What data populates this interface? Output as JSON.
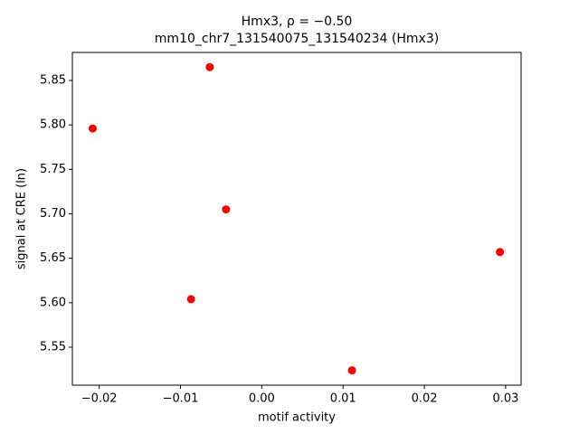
{
  "chart_data": {
    "type": "scatter",
    "title": "Hmx3, ρ = −0.50",
    "subtitle": "mm10_chr7_131540075_131540234 (Hmx3)",
    "x_label": "motif activity",
    "y_label": "signal at CRE (ln)",
    "color": "#ff0000",
    "x": [
      -0.0208,
      -0.0064,
      -0.0044,
      -0.0087,
      0.0111,
      0.0293
    ],
    "values": [
      5.796,
      5.865,
      5.705,
      5.604,
      5.524,
      5.657
    ],
    "xlim": [
      -0.0233,
      0.0319
    ],
    "ylim": [
      5.5073,
      5.8815
    ],
    "xticks": [
      {
        "value": -0.02,
        "label": "−0.02"
      },
      {
        "value": -0.01,
        "label": "−0.01"
      },
      {
        "value": 0,
        "label": "0.00"
      },
      0.01,
      0.02,
      0.03
    ],
    "yticks": [
      5.55,
      {
        "value": 5.6,
        "label": "5.60"
      },
      5.65,
      {
        "value": 5.7,
        "label": "5.70"
      },
      5.75,
      {
        "value": 5.8,
        "label": "5.80"
      },
      5.85
    ]
  }
}
